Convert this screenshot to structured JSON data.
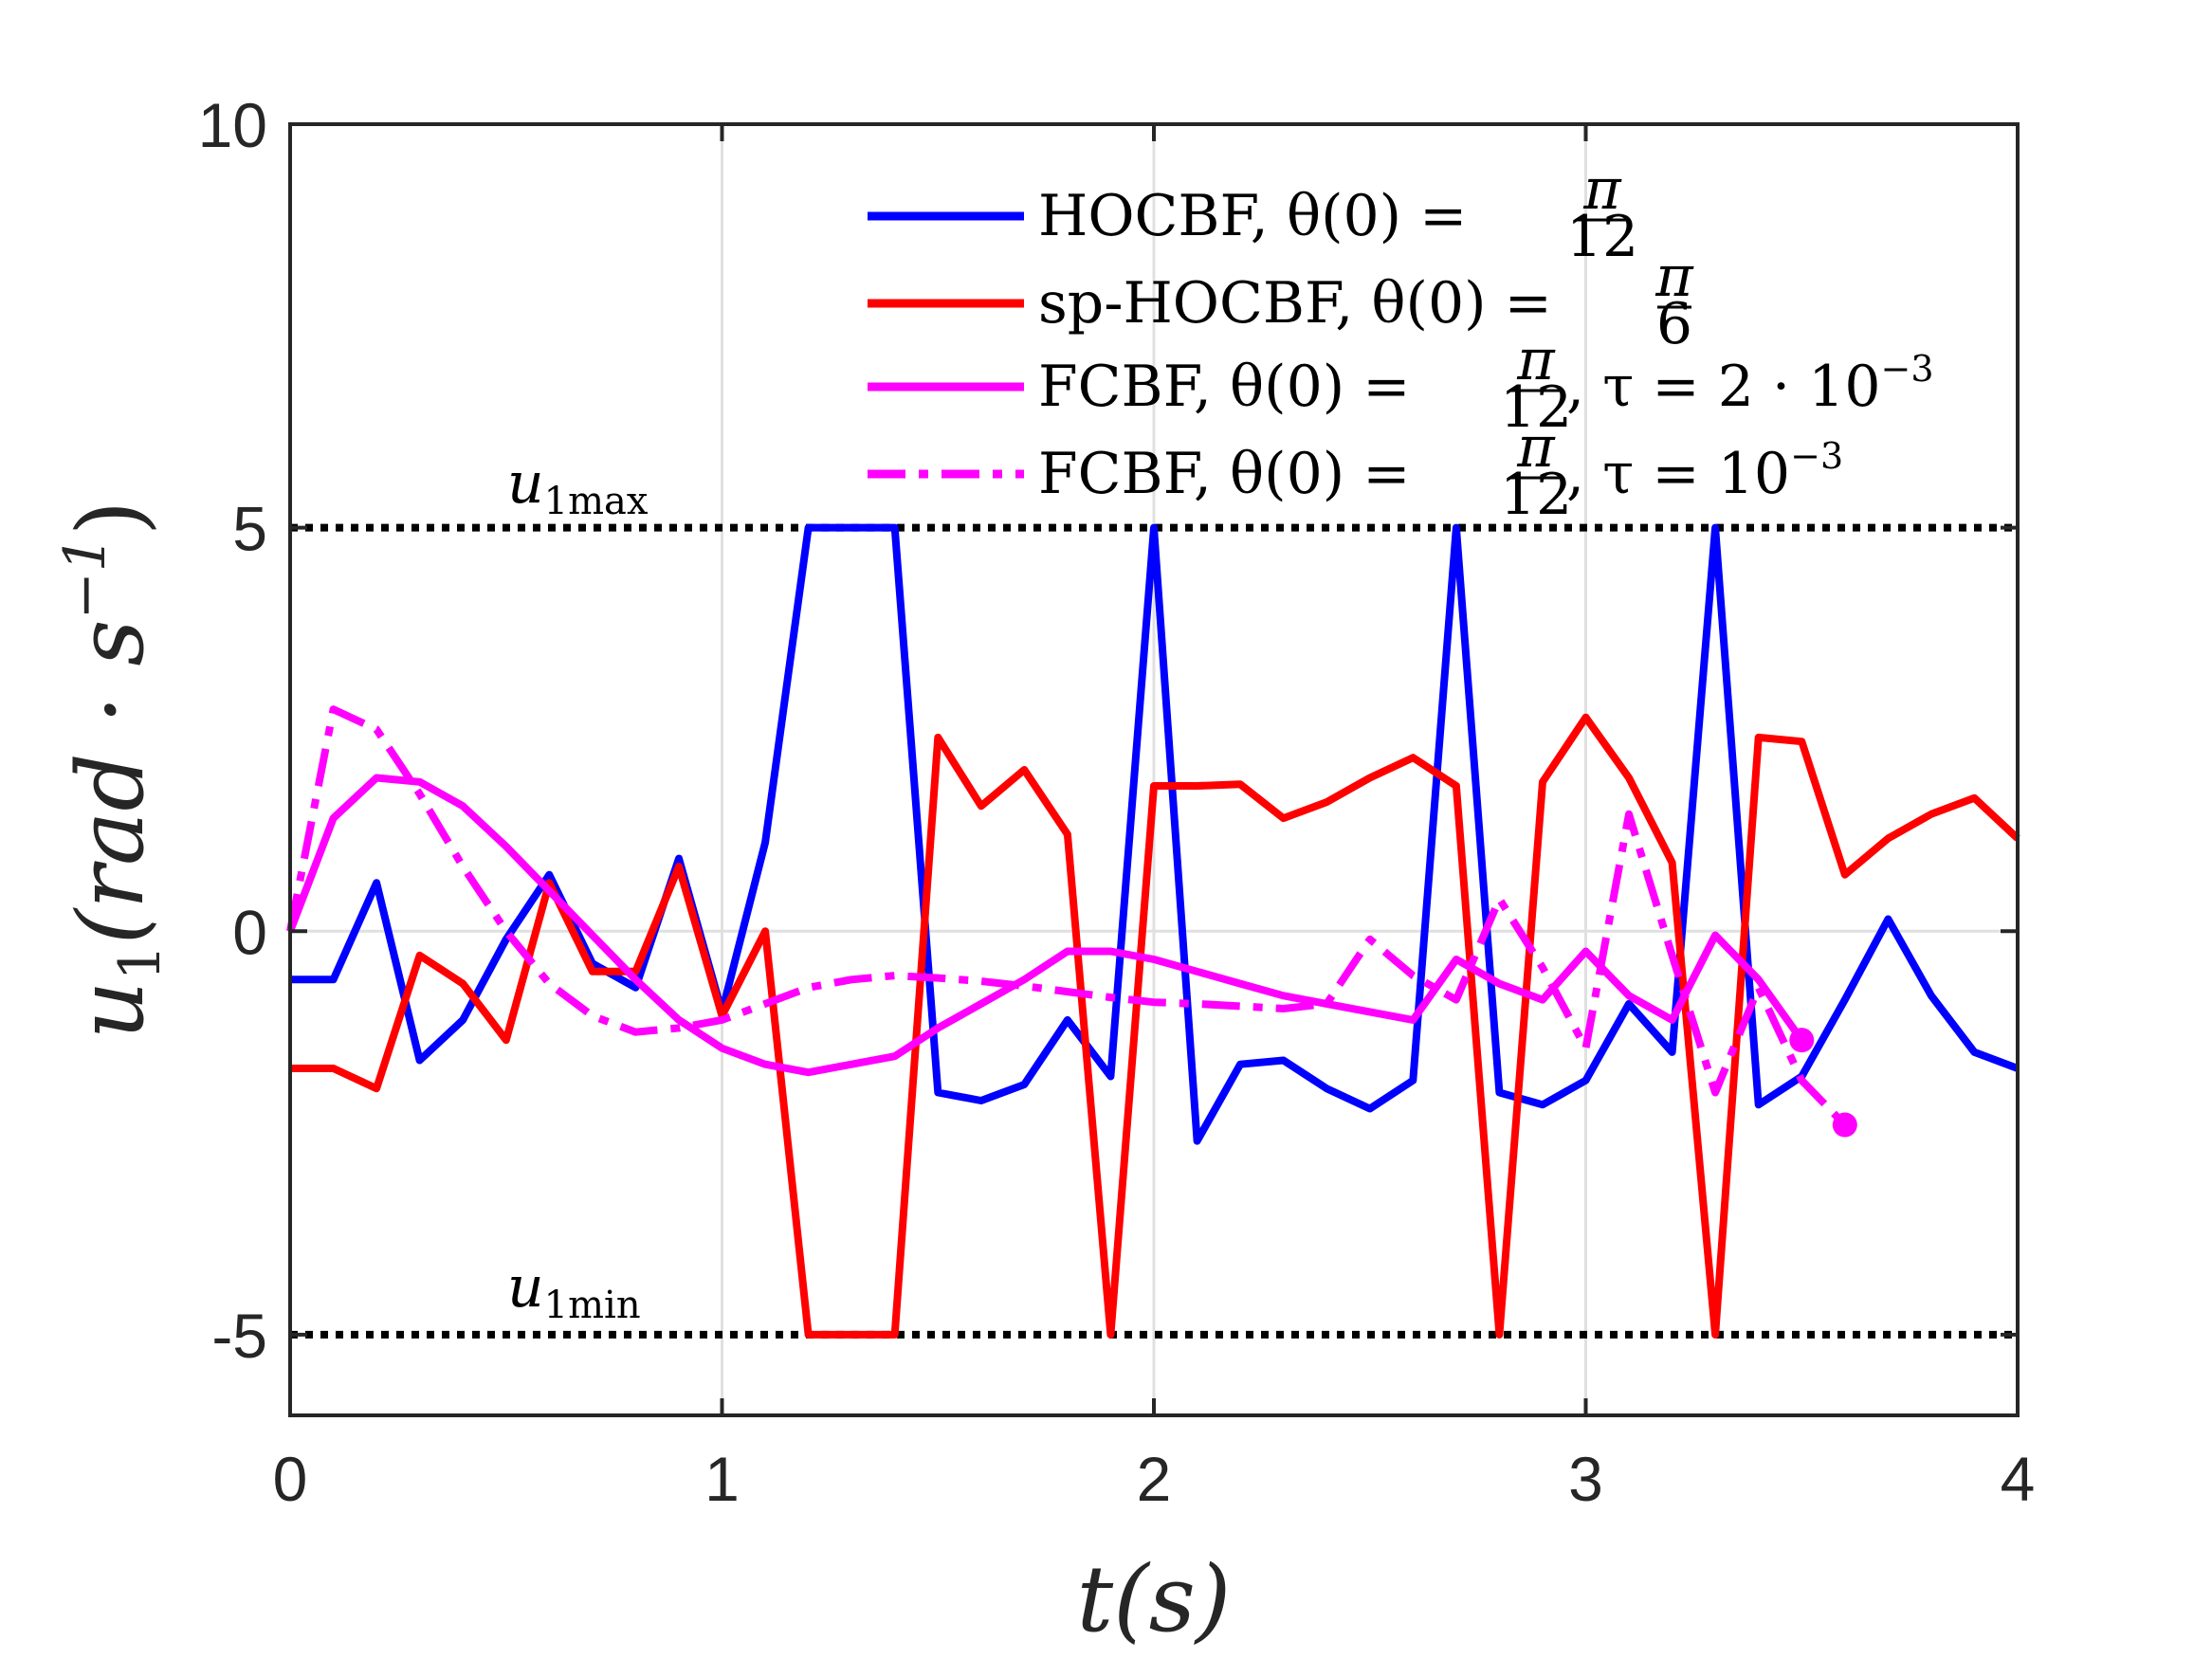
{
  "chart_data": {
    "type": "line",
    "title": "",
    "xlabel": "t(s)",
    "ylabel": "u₁(rad · s⁻¹)",
    "xlim": [
      0,
      4
    ],
    "ylim": [
      -6,
      10
    ],
    "xticks": [
      0,
      1,
      2,
      3,
      4
    ],
    "xtick_labels": [
      "0",
      "1",
      "2",
      "3",
      "4"
    ],
    "yticks": [
      -5,
      0,
      5,
      10
    ],
    "ytick_labels": [
      "-5",
      "0",
      "5",
      "10"
    ],
    "grid": "x-only",
    "legend_position": "top-right",
    "limits": [
      {
        "name": "u1max",
        "label": "u₁max",
        "value": 5,
        "style": "dotted",
        "color": "#000000"
      },
      {
        "name": "u1min",
        "label": "u₁min",
        "value": -5,
        "style": "dotted",
        "color": "#000000"
      }
    ],
    "series": [
      {
        "name": "HOCBF, θ(0) = π/12",
        "color": "#0000ff",
        "style": "solid",
        "x": [
          0,
          0.1,
          0.2,
          0.3,
          0.4,
          0.5,
          0.6,
          0.7,
          0.8,
          0.9,
          1.0,
          1.1,
          1.2,
          1.3,
          1.4,
          1.5,
          1.6,
          1.7,
          1.8,
          1.9,
          2.0,
          2.1,
          2.2,
          2.3,
          2.4,
          2.5,
          2.6,
          2.7,
          2.8,
          2.9,
          3.0,
          3.1,
          3.2,
          3.3,
          3.4,
          3.5,
          3.6,
          3.7,
          3.8,
          3.9,
          4.0
        ],
        "y": [
          -0.6,
          -0.6,
          0.6,
          -1.6,
          -1.1,
          -0.1,
          0.7,
          -0.4,
          -0.7,
          0.9,
          -1.0,
          1.1,
          5.0,
          5.0,
          5.0,
          -2.0,
          -2.1,
          -1.9,
          -1.1,
          -1.8,
          5.0,
          -2.6,
          -1.65,
          -1.6,
          -1.95,
          -2.2,
          -1.85,
          5.0,
          -2.0,
          -2.15,
          -1.85,
          -0.9,
          -1.5,
          5.0,
          -2.15,
          -1.8,
          -0.85,
          0.15,
          -0.8,
          -1.5,
          -1.7
        ]
      },
      {
        "name": "sp-HOCBF, θ(0) = π/6",
        "color": "#ff0000",
        "style": "solid",
        "x": [
          0,
          0.1,
          0.2,
          0.3,
          0.4,
          0.5,
          0.6,
          0.7,
          0.8,
          0.9,
          1.0,
          1.1,
          1.2,
          1.3,
          1.4,
          1.5,
          1.6,
          1.7,
          1.8,
          1.9,
          2.0,
          2.1,
          2.2,
          2.3,
          2.4,
          2.5,
          2.6,
          2.7,
          2.8,
          2.9,
          3.0,
          3.1,
          3.2,
          3.3,
          3.4,
          3.5,
          3.6,
          3.7,
          3.8,
          3.9,
          4.0
        ],
        "y": [
          -1.7,
          -1.7,
          -1.95,
          -0.3,
          -0.65,
          -1.35,
          0.6,
          -0.5,
          -0.5,
          0.8,
          -1.05,
          0.0,
          -5.0,
          -5.0,
          -5.0,
          2.4,
          1.55,
          2.0,
          1.2,
          -5.0,
          1.8,
          1.8,
          1.82,
          1.4,
          1.6,
          1.9,
          2.15,
          1.8,
          -5.0,
          1.85,
          2.65,
          1.9,
          0.85,
          -5.0,
          2.4,
          2.35,
          0.7,
          1.15,
          1.45,
          1.65,
          1.15
        ]
      },
      {
        "name": "FCBF, θ(0) = π/12, τ = 2 · 10⁻³",
        "color": "#ff00ff",
        "style": "solid",
        "x": [
          0,
          0.1,
          0.2,
          0.3,
          0.4,
          0.5,
          0.6,
          0.7,
          0.8,
          0.9,
          1.0,
          1.1,
          1.2,
          1.3,
          1.4,
          1.5,
          1.6,
          1.7,
          1.8,
          1.9,
          2.0,
          2.1,
          2.2,
          2.3,
          2.4,
          2.5,
          2.6,
          2.7,
          2.8,
          2.9,
          3.0,
          3.1,
          3.2,
          3.3,
          3.4,
          3.5
        ],
        "y": [
          0.0,
          1.4,
          1.9,
          1.85,
          1.55,
          1.05,
          0.5,
          -0.05,
          -0.6,
          -1.1,
          -1.45,
          -1.65,
          -1.75,
          -1.65,
          -1.55,
          -1.2,
          -0.9,
          -0.6,
          -0.25,
          -0.25,
          -0.35,
          -0.5,
          -0.65,
          -0.8,
          -0.9,
          -1.0,
          -1.1,
          -0.35,
          -0.65,
          -0.85,
          -0.25,
          -0.8,
          -1.1,
          -0.05,
          -0.6,
          -1.35
        ]
      },
      {
        "name": "FCBF, θ(0) = π/12, τ = 10⁻³",
        "color": "#ff00ff",
        "style": "dashdot",
        "x": [
          0,
          0.1,
          0.2,
          0.3,
          0.4,
          0.5,
          0.6,
          0.7,
          0.8,
          0.9,
          1.0,
          1.1,
          1.2,
          1.3,
          1.4,
          1.5,
          1.6,
          1.7,
          1.8,
          1.9,
          2.0,
          2.1,
          2.2,
          2.3,
          2.4,
          2.5,
          2.6,
          2.7,
          2.8,
          2.9,
          3.0,
          3.1,
          3.2,
          3.3,
          3.4,
          3.5,
          3.6
        ],
        "y": [
          0.0,
          2.75,
          2.5,
          1.7,
          0.8,
          0.0,
          -0.65,
          -1.05,
          -1.25,
          -1.2,
          -1.1,
          -0.9,
          -0.7,
          -0.6,
          -0.55,
          -0.58,
          -0.62,
          -0.68,
          -0.75,
          -0.82,
          -0.88,
          -0.9,
          -0.93,
          -0.96,
          -0.9,
          -0.1,
          -0.55,
          -0.85,
          0.4,
          -0.45,
          -1.45,
          1.45,
          -0.3,
          -2.0,
          -0.7,
          -1.85,
          -2.4
        ]
      }
    ],
    "endpoints": [
      {
        "series": 2,
        "x": 3.5,
        "y": -1.35
      },
      {
        "series": 3,
        "x": 3.6,
        "y": -2.4
      }
    ]
  },
  "legend": {
    "entries": [
      {
        "main": "HOCBF, θ(0) = ",
        "num": "π",
        "den": "12",
        "tail": ""
      },
      {
        "main": "sp-HOCBF, θ(0) = ",
        "num": "π",
        "den": "6",
        "tail": ""
      },
      {
        "main": "FCBF, θ(0) = ",
        "num": "π",
        "den": "12",
        "tail": ", τ = 2 · 10",
        "sup": "−3"
      },
      {
        "main": "FCBF, θ(0) = ",
        "num": "π",
        "den": "12",
        "tail": ", τ = 10",
        "sup": "−3"
      }
    ]
  },
  "labels": {
    "x_title": "t(s)",
    "y_title_main": "u",
    "y_title_sub": "1",
    "y_title_rest": "(rad · s",
    "y_title_sup": "−1",
    "y_title_close": ")",
    "umax_main": "u",
    "umax_sub": "1max",
    "umin_main": "u",
    "umin_sub": "1min"
  }
}
